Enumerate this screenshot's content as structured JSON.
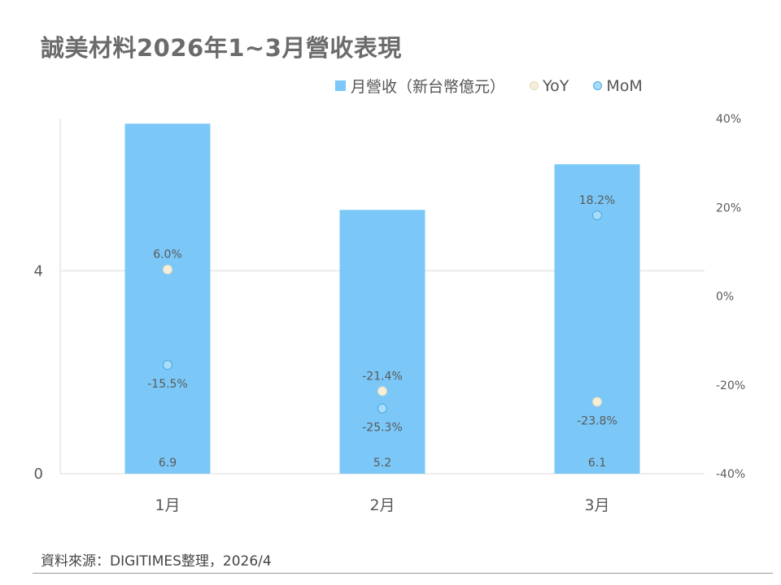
{
  "title": "誠美材料2026年1~3月營收表現",
  "source": "資料來源：DIGITIMES整理，2026/4",
  "colors": {
    "bar": "#7bc8f8",
    "yoy_dot": "#f5efd9",
    "yoy_dot_stroke": "#e2d9bd",
    "mom_dot": "#a9dcf9",
    "mom_dot_stroke": "#4aa8e0",
    "text": "#595959",
    "grid": "#d9d9d9"
  },
  "legend": {
    "revenue": "月營收（新台幣億元）",
    "yoy": "YoY",
    "mom": "MoM"
  },
  "chart_data": {
    "type": "bar",
    "categories": [
      "1月",
      "2月",
      "3月"
    ],
    "series": [
      {
        "name": "月營收（新台幣億元）",
        "type": "bar",
        "axis": "left",
        "values": [
          6.9,
          5.2,
          6.1
        ],
        "labels": [
          "6.9",
          "5.2",
          "6.1"
        ]
      },
      {
        "name": "YoY",
        "type": "scatter",
        "axis": "right",
        "values": [
          6.0,
          -21.4,
          -23.8
        ],
        "labels": [
          "6.0%",
          "-21.4%",
          "-23.8%"
        ]
      },
      {
        "name": "MoM",
        "type": "scatter",
        "axis": "right",
        "values": [
          -15.5,
          -25.3,
          18.2
        ],
        "labels": [
          "-15.5%",
          "-25.3%",
          "18.2%"
        ]
      }
    ],
    "y_left": {
      "min": 0,
      "max": 7,
      "ticks": [
        0,
        4
      ],
      "tick_labels": [
        "0",
        "4"
      ]
    },
    "y_right": {
      "min": -40,
      "max": 40,
      "ticks": [
        40,
        20,
        0,
        -20,
        -40
      ],
      "tick_labels": [
        "40%",
        "20%",
        "0%",
        "-20%",
        "-40%"
      ]
    },
    "grid": true,
    "legend_position": "top-right"
  }
}
